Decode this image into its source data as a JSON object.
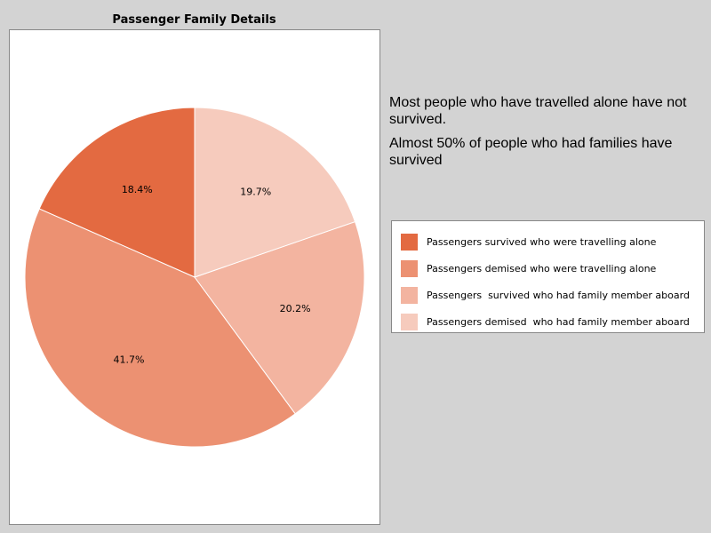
{
  "chart_data": {
    "type": "pie",
    "title": "Passenger Family Details",
    "slices": [
      {
        "label": "Passengers survived who were travelling alone",
        "value": 18.4,
        "value_label": "18.4%",
        "color": "#e36a41"
      },
      {
        "label": "Passengers demised who were travelling alone",
        "value": 41.7,
        "value_label": "41.7%",
        "color": "#ec9172"
      },
      {
        "label": "Passengers  survived who had family member aboard",
        "value": 20.2,
        "value_label": "20.2%",
        "color": "#f3b4a0"
      },
      {
        "label": "Passengers demised  who had family member aboard",
        "value": 19.7,
        "value_label": "19.7%",
        "color": "#f6cbbd"
      }
    ],
    "start_angle_deg": 90,
    "direction": "counterclockwise",
    "legend_position": "right"
  },
  "annotations": [
    "Most people who have travelled alone have not survived.",
    "Almost 50% of people who had families have survived"
  ]
}
